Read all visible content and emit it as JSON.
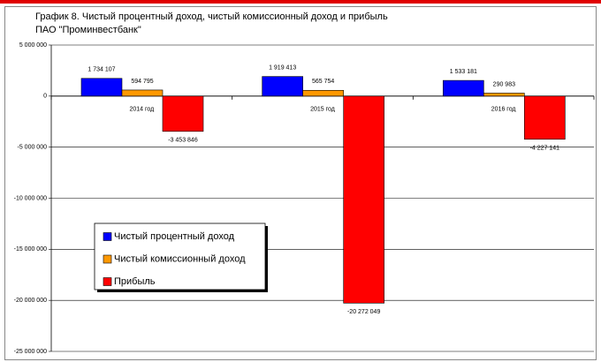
{
  "chart_data": {
    "type": "bar",
    "title": [
      "График 8. Чистый процентный доход, чистый комиссионный доход и прибыль",
      "ПАО \"Проминвестбанк\""
    ],
    "categories": [
      "2014 год",
      "2015 год",
      "2016 год"
    ],
    "series": [
      {
        "name": "Чистый процентный доход",
        "color": "#0000ff",
        "values": [
          1734107,
          1919413,
          1533181
        ],
        "value_labels": [
          "1 734 107",
          "1 919 413",
          "1 533 181"
        ]
      },
      {
        "name": "Чистый комиссионный доход",
        "color": "#ff9900",
        "values": [
          594795,
          565754,
          290983
        ],
        "value_labels": [
          "594 795",
          "565 754",
          "290 983"
        ]
      },
      {
        "name": "Прибыль",
        "color": "#ff0000",
        "values": [
          -3453846,
          -20272049,
          -4227141
        ],
        "value_labels": [
          "-3 453 846",
          "-20 272 049",
          "-4 227 141"
        ]
      }
    ],
    "ylim": [
      -25000000,
      5000000
    ],
    "yticks": [
      {
        "value": 5000000,
        "label": "5 000 000"
      },
      0,
      {
        "value": -5000000,
        "label": "-5 000 000"
      },
      {
        "value": -10000000,
        "label": "-10 000 000"
      },
      {
        "value": -15000000,
        "label": "-15 000 000"
      },
      {
        "value": -20000000,
        "label": "-20 000 000"
      },
      {
        "value": -25000000,
        "label": "-25 000 000"
      }
    ],
    "grid": true
  }
}
